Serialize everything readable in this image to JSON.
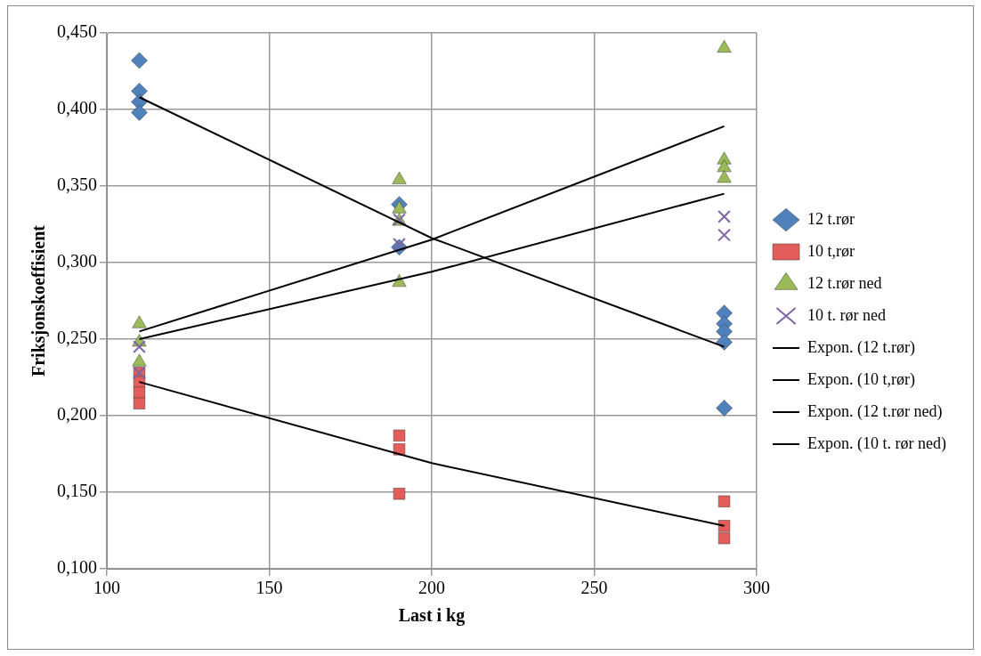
{
  "chart_data": {
    "type": "scatter",
    "xlabel": "Last i kg",
    "ylabel": "Friksjonskoeffisient",
    "xlim": [
      100,
      300
    ],
    "xticks": [
      100,
      150,
      200,
      250,
      300
    ],
    "ylim": [
      0.1,
      0.45
    ],
    "yticks": [
      {
        "value": 0.1,
        "label": "0,100"
      },
      {
        "value": 0.15,
        "label": "0,150"
      },
      {
        "value": 0.2,
        "label": "0,200"
      },
      {
        "value": 0.25,
        "label": "0,250"
      },
      {
        "value": 0.3,
        "label": "0,300"
      },
      {
        "value": 0.35,
        "label": "0,350"
      },
      {
        "value": 0.4,
        "label": "0,400"
      },
      {
        "value": 0.45,
        "label": "0,450"
      }
    ],
    "grid": true,
    "legend": "right",
    "series": [
      {
        "name": "12 t.rør",
        "marker": "diamond",
        "color": "#4f81bd",
        "x": [
          110,
          110,
          110,
          110,
          190,
          190,
          290,
          290,
          290,
          290,
          290
        ],
        "values": [
          0.432,
          0.412,
          0.405,
          0.398,
          0.338,
          0.31,
          0.267,
          0.26,
          0.255,
          0.248,
          0.205
        ]
      },
      {
        "name": "10 t,rør",
        "marker": "square",
        "color": "#e35d5a",
        "x": [
          110,
          110,
          110,
          110,
          190,
          190,
          190,
          290,
          290,
          290
        ],
        "values": [
          0.228,
          0.222,
          0.215,
          0.208,
          0.187,
          0.178,
          0.149,
          0.144,
          0.128,
          0.12
        ]
      },
      {
        "name": "12 t.rør ned",
        "marker": "triangle",
        "color": "#9bbb59",
        "x": [
          110,
          110,
          110,
          190,
          190,
          190,
          190,
          290,
          290,
          290,
          290
        ],
        "values": [
          0.26,
          0.248,
          0.235,
          0.354,
          0.335,
          0.327,
          0.287,
          0.44,
          0.367,
          0.362,
          0.355
        ]
      },
      {
        "name": "10 t. rør ned",
        "marker": "cross",
        "color": "#8064a2",
        "x": [
          110,
          110,
          190,
          190,
          290,
          290
        ],
        "values": [
          0.245,
          0.228,
          0.328,
          0.312,
          0.33,
          0.318
        ]
      },
      {
        "name": "Expon. (12 t.rør)",
        "type": "line",
        "marker": "none",
        "color": "#000000",
        "x": [
          110,
          200,
          290
        ],
        "values": [
          0.408,
          0.316,
          0.245
        ]
      },
      {
        "name": "Expon. (10 t,rør)",
        "type": "line",
        "marker": "none",
        "color": "#000000",
        "x": [
          110,
          200,
          290
        ],
        "values": [
          0.222,
          0.169,
          0.128
        ]
      },
      {
        "name": "Expon. (12 t.rør ned)",
        "type": "line",
        "marker": "none",
        "color": "#000000",
        "x": [
          110,
          200,
          290
        ],
        "values": [
          0.255,
          0.315,
          0.389
        ]
      },
      {
        "name": "Expon. (10 t. rør ned)",
        "type": "line",
        "marker": "none",
        "color": "#000000",
        "x": [
          110,
          200,
          290
        ],
        "values": [
          0.25,
          0.294,
          0.345
        ]
      }
    ]
  }
}
